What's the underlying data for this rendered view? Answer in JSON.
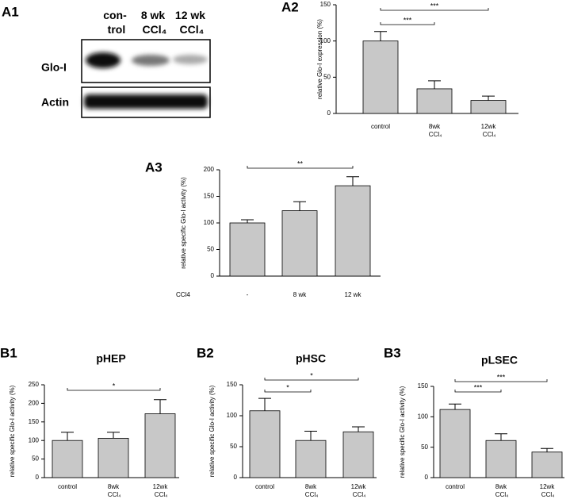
{
  "blot": {
    "panel": "A1",
    "columns": [
      "con-\ntrol",
      "8 wk\nCCl₄",
      "12 wk\nCCl₄"
    ],
    "rows": [
      "Glo-I",
      "Actin"
    ]
  },
  "chart_data": [
    {
      "type": "bar",
      "panel": "A2",
      "ylabel": "relative Glo-I expression (%)",
      "categories": [
        "control",
        "8wk\nCCl₄",
        "12wk\nCCl₄"
      ],
      "values": [
        100,
        34,
        18
      ],
      "errors": [
        13,
        11,
        6
      ],
      "color": "#c8c8c8",
      "ylim": [
        0,
        150
      ],
      "yticks": [
        0,
        50,
        100,
        150
      ],
      "significance": [
        {
          "label": "***",
          "pair": [
            0,
            2
          ]
        },
        {
          "label": "***",
          "pair": [
            0,
            1
          ]
        }
      ]
    },
    {
      "type": "bar",
      "panel": "A3",
      "ylabel": "relative specific Glo-I activity (%)",
      "xlabel": "CCl4",
      "categories": [
        "-",
        "8 wk",
        "12 wk"
      ],
      "values": [
        100,
        123,
        170
      ],
      "errors": [
        6,
        17,
        17
      ],
      "color": "#c8c8c8",
      "ylim": [
        0,
        200
      ],
      "yticks": [
        0,
        50,
        100,
        150,
        200
      ],
      "significance": [
        {
          "label": "**",
          "pair": [
            0,
            2
          ]
        }
      ]
    },
    {
      "type": "bar",
      "panel": "B1",
      "title": "pHEP",
      "ylabel": "relative specific Glo-I activity (%)",
      "categories": [
        "control",
        "8wk\nCCl₄",
        "12wk\nCCl₄"
      ],
      "values": [
        100,
        106,
        172
      ],
      "errors": [
        22,
        16,
        38
      ],
      "color": "#c8c8c8",
      "ylim": [
        0,
        250
      ],
      "yticks": [
        0,
        50,
        100,
        150,
        200,
        250
      ],
      "significance": [
        {
          "label": "*",
          "pair": [
            0,
            2
          ]
        }
      ]
    },
    {
      "type": "bar",
      "panel": "B2",
      "title": "pHSC",
      "ylabel": "relative specific Glo-I activity (%)",
      "categories": [
        "control",
        "8wk\nCCl₄",
        "12wk\nCCl₄"
      ],
      "values": [
        108,
        60,
        74
      ],
      "errors": [
        20,
        15,
        8
      ],
      "color": "#c8c8c8",
      "ylim": [
        0,
        150
      ],
      "yticks": [
        0,
        50,
        100,
        150
      ],
      "significance": [
        {
          "label": "*",
          "pair": [
            0,
            2
          ]
        },
        {
          "label": "*",
          "pair": [
            0,
            1
          ]
        }
      ]
    },
    {
      "type": "bar",
      "panel": "B3",
      "title": "pLSEC",
      "ylabel": "relative specific Glo-I activity (%)",
      "categories": [
        "control",
        "8wk\nCCl₄",
        "12wk\nCCl₄"
      ],
      "values": [
        112,
        61,
        42
      ],
      "errors": [
        9,
        11,
        6
      ],
      "color": "#c8c8c8",
      "ylim": [
        0,
        150
      ],
      "yticks": [
        0,
        50,
        100,
        150
      ],
      "significance": [
        {
          "label": "***",
          "pair": [
            0,
            2
          ]
        },
        {
          "label": "***",
          "pair": [
            0,
            1
          ]
        }
      ]
    }
  ]
}
